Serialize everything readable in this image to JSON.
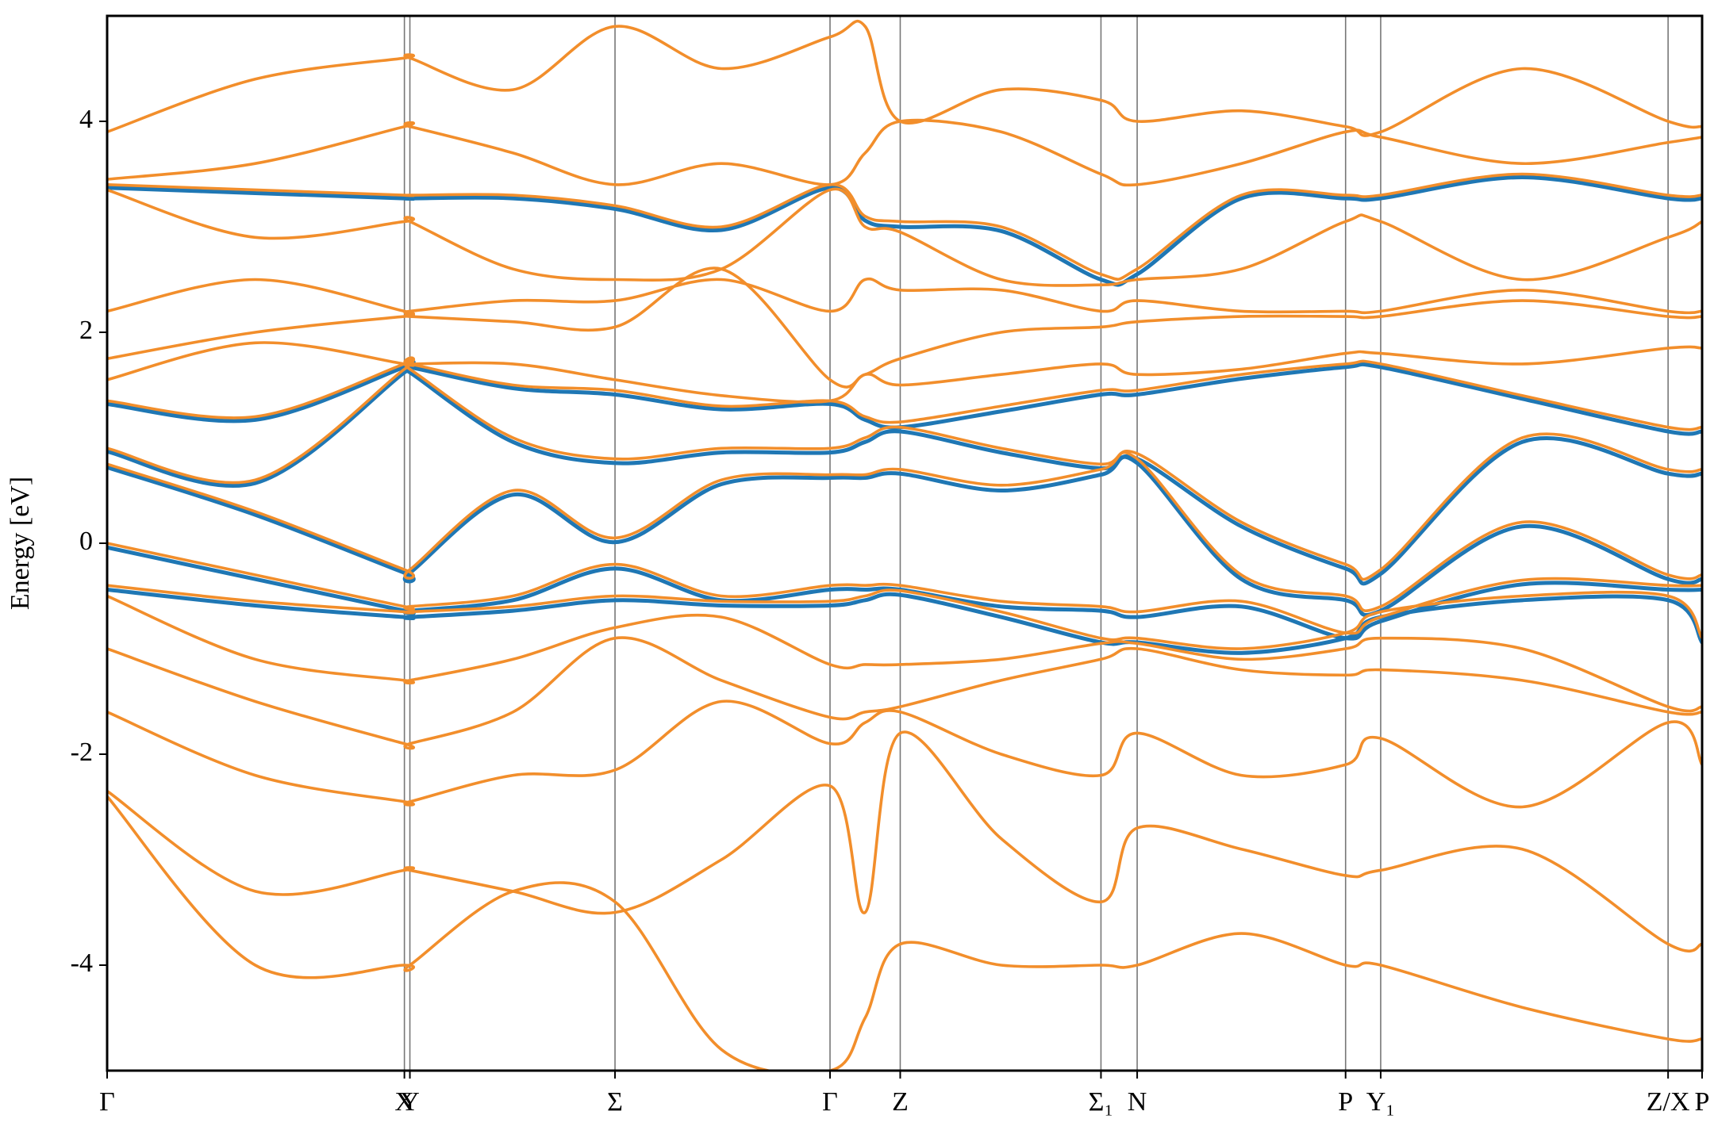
{
  "chart_data": {
    "type": "line",
    "ylabel": "Energy [eV]",
    "x": [
      0,
      1.35,
      2.71,
      2.76,
      3.7,
      4.63,
      5.6,
      6.59,
      6.91,
      7.23,
      8.15,
      9.06,
      9.39,
      10.34,
      11.29,
      11.61,
      12.9,
      14.23,
      14.54
    ],
    "xlim": [
      0,
      14.54
    ],
    "ylim": [
      -5,
      5
    ],
    "xticks": [
      {
        "value": 0,
        "label": "Γ"
      },
      {
        "value": 2.71,
        "label": "X"
      },
      {
        "value": 2.76,
        "label": "Y"
      },
      {
        "value": 4.63,
        "label": "Σ"
      },
      {
        "value": 6.59,
        "label": "Γ"
      },
      {
        "value": 7.23,
        "label": "Z"
      },
      {
        "value": 9.06,
        "label": "Σ₁"
      },
      {
        "value": 9.39,
        "label": "N"
      },
      {
        "value": 11.29,
        "label": "P"
      },
      {
        "value": 11.61,
        "label": "Y₁"
      },
      {
        "value": 14.23,
        "label": "Z/X"
      },
      {
        "value": 14.54,
        "label": "P"
      }
    ],
    "yticks": [
      -4,
      -2,
      0,
      2,
      4
    ],
    "grid": true,
    "series": [
      {
        "color": "#1f77b4",
        "values": [
          3.37,
          3.32,
          3.27,
          3.27,
          3.27,
          3.17,
          2.97,
          3.37,
          3.06,
          3.0,
          2.96,
          2.5,
          2.55,
          3.27,
          3.27,
          3.27,
          3.47,
          3.27,
          3.27
        ]
      },
      {
        "color": "#1f77b4",
        "values": [
          1.32,
          1.17,
          1.67,
          1.67,
          1.47,
          1.41,
          1.27,
          1.32,
          1.17,
          1.1,
          1.25,
          1.41,
          1.41,
          1.56,
          1.67,
          1.67,
          1.37,
          1.06,
          1.06
        ]
      },
      {
        "color": "#1f77b4",
        "values": [
          0.87,
          0.57,
          1.62,
          1.62,
          0.96,
          0.76,
          0.86,
          0.86,
          0.96,
          1.06,
          0.86,
          0.71,
          0.8,
          0.16,
          -0.24,
          -0.29,
          0.96,
          0.66,
          0.66
        ]
      },
      {
        "color": "#1f77b4",
        "values": [
          0.72,
          0.27,
          -0.28,
          -0.28,
          0.46,
          0.01,
          0.56,
          0.62,
          0.62,
          0.66,
          0.5,
          0.65,
          0.76,
          -0.34,
          -0.54,
          -0.64,
          0.16,
          -0.34,
          -0.34
        ]
      },
      {
        "color": "#1f77b4",
        "values": [
          -0.04,
          -0.34,
          -0.64,
          -0.64,
          -0.54,
          -0.24,
          -0.54,
          -0.44,
          -0.44,
          -0.44,
          -0.6,
          -0.64,
          -0.7,
          -0.6,
          -0.9,
          -0.74,
          -0.39,
          -0.44,
          -0.44
        ]
      },
      {
        "color": "#1f77b4",
        "values": [
          -0.44,
          -0.59,
          -0.7,
          -0.7,
          -0.64,
          -0.54,
          -0.59,
          -0.59,
          -0.54,
          -0.49,
          -0.7,
          -0.94,
          -0.94,
          -1.04,
          -0.9,
          -0.7,
          -0.54,
          -0.54,
          -0.94
        ]
      },
      {
        "color": "#f28e2b",
        "values": [
          3.9,
          4.4,
          4.6,
          4.6,
          4.3,
          4.9,
          4.5,
          4.8,
          4.9,
          4.0,
          4.3,
          4.2,
          4.0,
          4.1,
          3.95,
          3.9,
          4.5,
          4.0,
          3.95
        ]
      },
      {
        "color": "#f28e2b",
        "values": [
          3.45,
          3.6,
          3.95,
          3.95,
          3.7,
          3.4,
          3.6,
          3.4,
          3.7,
          4.0,
          3.9,
          3.5,
          3.4,
          3.6,
          3.9,
          3.85,
          3.6,
          3.8,
          3.85
        ]
      },
      {
        "color": "#f28e2b",
        "values": [
          3.4,
          3.35,
          3.3,
          3.3,
          3.3,
          3.2,
          3.0,
          3.4,
          3.1,
          3.05,
          3.0,
          2.55,
          2.6,
          3.3,
          3.3,
          3.3,
          3.5,
          3.3,
          3.3
        ]
      },
      {
        "color": "#f28e2b",
        "values": [
          3.35,
          2.9,
          3.05,
          3.05,
          2.6,
          2.5,
          2.6,
          3.35,
          3.0,
          2.95,
          2.5,
          2.45,
          2.5,
          2.6,
          3.05,
          3.05,
          2.5,
          2.9,
          3.05
        ]
      },
      {
        "color": "#f28e2b",
        "values": [
          2.2,
          2.5,
          2.2,
          2.2,
          2.3,
          2.3,
          2.5,
          2.2,
          2.5,
          2.4,
          2.4,
          2.2,
          2.3,
          2.2,
          2.2,
          2.2,
          2.4,
          2.2,
          2.2
        ]
      },
      {
        "color": "#f28e2b",
        "values": [
          1.75,
          2.0,
          2.15,
          2.15,
          2.1,
          2.05,
          2.6,
          1.55,
          1.6,
          1.75,
          2.0,
          2.05,
          2.1,
          2.15,
          2.15,
          2.15,
          2.3,
          2.15,
          2.15
        ]
      },
      {
        "color": "#f28e2b",
        "values": [
          1.55,
          1.9,
          1.7,
          1.7,
          1.7,
          1.55,
          1.4,
          1.35,
          1.6,
          1.5,
          1.6,
          1.7,
          1.6,
          1.65,
          1.8,
          1.8,
          1.7,
          1.85,
          1.85
        ]
      },
      {
        "color": "#f28e2b",
        "values": [
          1.35,
          1.2,
          1.7,
          1.7,
          1.5,
          1.45,
          1.3,
          1.35,
          1.2,
          1.15,
          1.3,
          1.45,
          1.45,
          1.6,
          1.7,
          1.7,
          1.4,
          1.1,
          1.1
        ]
      },
      {
        "color": "#f28e2b",
        "values": [
          0.9,
          0.6,
          1.65,
          1.65,
          1.0,
          0.8,
          0.9,
          0.9,
          1.0,
          1.1,
          0.9,
          0.75,
          0.85,
          0.2,
          -0.2,
          -0.25,
          1.0,
          0.7,
          0.7
        ]
      },
      {
        "color": "#f28e2b",
        "values": [
          0.75,
          0.3,
          -0.25,
          -0.25,
          0.5,
          0.05,
          0.6,
          0.65,
          0.65,
          0.7,
          0.55,
          0.7,
          0.8,
          -0.3,
          -0.5,
          -0.6,
          0.2,
          -0.3,
          -0.3
        ]
      },
      {
        "color": "#f28e2b",
        "values": [
          0.0,
          -0.3,
          -0.6,
          -0.6,
          -0.5,
          -0.2,
          -0.5,
          -0.4,
          -0.4,
          -0.4,
          -0.55,
          -0.6,
          -0.65,
          -0.55,
          -0.85,
          -0.7,
          -0.35,
          -0.4,
          -0.4
        ]
      },
      {
        "color": "#f28e2b",
        "values": [
          -0.4,
          -0.55,
          -0.65,
          -0.65,
          -0.6,
          -0.5,
          -0.55,
          -0.55,
          -0.5,
          -0.45,
          -0.65,
          -0.9,
          -0.9,
          -1.0,
          -0.85,
          -0.65,
          -0.5,
          -0.5,
          -0.9
        ]
      },
      {
        "color": "#f28e2b",
        "values": [
          -0.5,
          -1.1,
          -1.3,
          -1.3,
          -1.1,
          -0.8,
          -0.7,
          -1.15,
          -1.15,
          -1.15,
          -1.1,
          -0.95,
          -0.95,
          -1.1,
          -1.0,
          -0.9,
          -1.0,
          -1.55,
          -1.55
        ]
      },
      {
        "color": "#f28e2b",
        "values": [
          -1.0,
          -1.5,
          -1.9,
          -1.9,
          -1.6,
          -0.9,
          -1.3,
          -1.65,
          -1.6,
          -1.55,
          -1.3,
          -1.1,
          -1.0,
          -1.2,
          -1.25,
          -1.2,
          -1.3,
          -1.6,
          -1.6
        ]
      },
      {
        "color": "#f28e2b",
        "values": [
          -1.6,
          -2.2,
          -2.45,
          -2.45,
          -2.2,
          -2.15,
          -1.5,
          -1.9,
          -1.7,
          -1.6,
          -2.0,
          -2.2,
          -1.8,
          -2.2,
          -2.1,
          -1.85,
          -2.5,
          -1.7,
          -2.1
        ]
      },
      {
        "color": "#f28e2b",
        "values": [
          -2.35,
          -3.3,
          -3.1,
          -3.1,
          -3.3,
          -3.5,
          -3.0,
          -2.3,
          -3.5,
          -1.8,
          -2.8,
          -3.4,
          -2.7,
          -2.9,
          -3.15,
          -3.1,
          -2.9,
          -3.8,
          -3.8
        ]
      },
      {
        "color": "#f28e2b",
        "values": [
          -2.4,
          -4.0,
          -4.0,
          -4.0,
          -3.3,
          -3.4,
          -4.8,
          -5.0,
          -4.5,
          -3.8,
          -4.0,
          -4.0,
          -4.0,
          -3.7,
          -4.0,
          -4.0,
          -4.4,
          -4.7,
          -4.7
        ]
      }
    ]
  }
}
